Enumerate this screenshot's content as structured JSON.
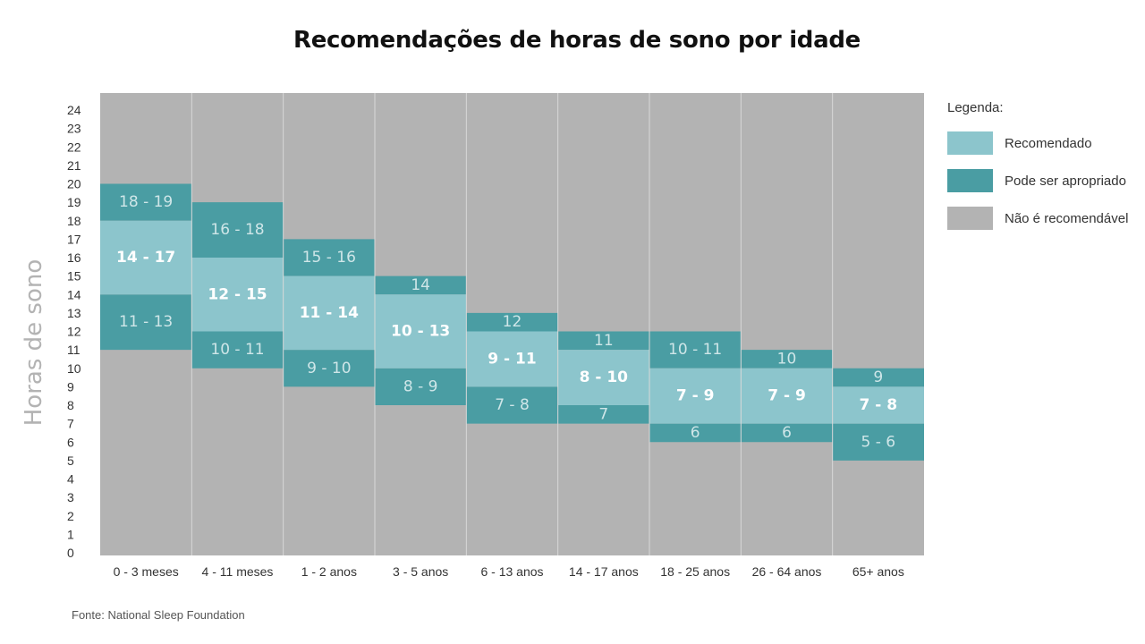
{
  "chart_data": {
    "type": "bar",
    "title": "Recomendações de horas de sono por idade",
    "ylabel": "Horas de sono",
    "xlabel": "",
    "ylim": [
      0,
      24
    ],
    "y_ticks": [
      0,
      1,
      2,
      3,
      4,
      5,
      6,
      7,
      8,
      9,
      10,
      11,
      12,
      13,
      14,
      15,
      16,
      17,
      18,
      19,
      20,
      21,
      22,
      23,
      24
    ],
    "categories": [
      "0 - 3 meses",
      "4 - 11 meses",
      "1 - 2 anos",
      "3 - 5 anos",
      "6 - 13 anos",
      "14 - 17 anos",
      "18 - 25 anos",
      "26 - 64 anos",
      "65+ anos"
    ],
    "series": [
      {
        "name": "Recomendado",
        "color": "#8cc5cc",
        "ranges": [
          [
            14,
            17
          ],
          [
            12,
            15
          ],
          [
            11,
            14
          ],
          [
            10,
            13
          ],
          [
            9,
            11
          ],
          [
            8,
            10
          ],
          [
            7,
            9
          ],
          [
            7,
            9
          ],
          [
            7,
            8
          ]
        ],
        "labels": [
          "14 - 17",
          "12 - 15",
          "11 - 14",
          "10 - 13",
          "9 - 11",
          "8 - 10",
          "7 - 9",
          "7 - 9",
          "7 - 8"
        ]
      },
      {
        "name": "Pode ser apropriado",
        "color": "#4a9da3",
        "upper_ranges": [
          [
            18,
            19
          ],
          [
            16,
            18
          ],
          [
            15,
            16
          ],
          [
            14,
            14
          ],
          [
            12,
            12
          ],
          [
            11,
            11
          ],
          [
            10,
            11
          ],
          [
            10,
            10
          ],
          [
            9,
            9
          ]
        ],
        "upper_labels": [
          "18 - 19",
          "16 - 18",
          "15 - 16",
          "14",
          "12",
          "11",
          "10 - 11",
          "10",
          "9"
        ],
        "lower_ranges": [
          [
            11,
            13
          ],
          [
            10,
            11
          ],
          [
            9,
            10
          ],
          [
            8,
            9
          ],
          [
            7,
            8
          ],
          [
            7,
            7
          ],
          [
            6,
            6
          ],
          [
            6,
            6
          ],
          [
            5,
            6
          ]
        ],
        "lower_labels": [
          "11 - 13",
          "10 - 11",
          "9 - 10",
          "8 - 9",
          "7 - 8",
          "7",
          "6",
          "6",
          "5 - 6"
        ]
      },
      {
        "name": "Não é recomendável",
        "color": "#b3b3b3"
      }
    ],
    "legend": {
      "title": "Legenda:",
      "position": "right"
    },
    "source": "Fonte:  National Sleep Foundation"
  }
}
